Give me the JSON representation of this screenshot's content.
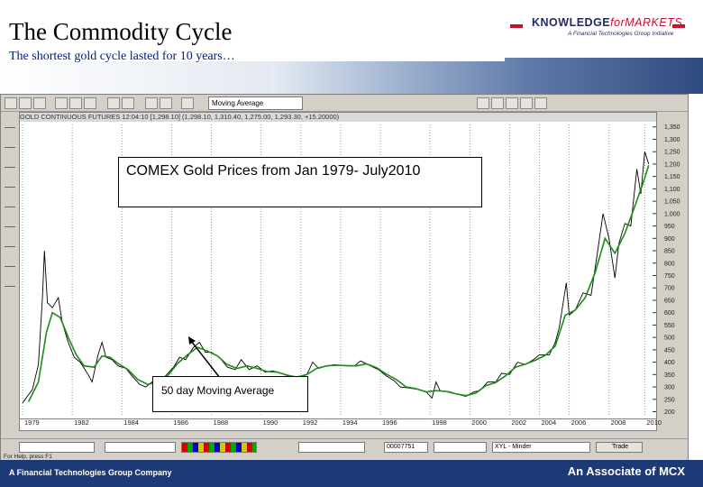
{
  "slide": {
    "title": "The Commodity Cycle",
    "subtitle": "The shortest gold cycle lasted for 10 years…",
    "logo_main": "KNOWLEDGE",
    "logo_italic": "forMARKETS",
    "logo_sub": "A Financial Technologies Group Initiative",
    "footer_left": "A Financial Technologies Group Company",
    "footer_right": "An Associate of MCX"
  },
  "app": {
    "indicator_select": "Moving Average",
    "chart_header": "GOLD CONTINUOUS FUTURES 12:04:10 [1,298.10] (1,298.10, 1,310.40, 1,275.00, 1,293.30, +15.20000)",
    "bottom_fields": [
      "",
      "",
      "",
      "",
      "00007751",
      "",
      "XYL - Minder",
      "Trade"
    ],
    "status": "For Help, press F1"
  },
  "chart_data": {
    "type": "line",
    "annotation_title": "COMEX Gold Prices from Jan 1979- July2010",
    "annotation_ma": "50 day Moving Average",
    "x_tick_labels": [
      "1979",
      "1982",
      "1984",
      "1986",
      "1988",
      "1990",
      "1992",
      "1994",
      "1996",
      "1998",
      "2000",
      "2002",
      "2004",
      "2006",
      "2008",
      "2010"
    ],
    "x_tick_years": [
      1979,
      1981.5,
      1984,
      1986.5,
      1988.5,
      1991,
      1993,
      1995,
      1997,
      1999.5,
      2001.5,
      2003.5,
      2005,
      2006.5,
      2008.5,
      2010.3
    ],
    "y_ticks": [
      200,
      250,
      300,
      350,
      400,
      450,
      500,
      550,
      600,
      650,
      700,
      750,
      800,
      850,
      900,
      950,
      1000,
      1050,
      1100,
      1150,
      1200,
      1250,
      1300,
      1350
    ],
    "ylim": [
      180,
      1360
    ],
    "xlim": [
      1979,
      2010.6
    ],
    "series": [
      {
        "values_kind": "price",
        "color": "#000000",
        "points": [
          [
            1979.0,
            235
          ],
          [
            1979.5,
            290
          ],
          [
            1979.8,
            390
          ],
          [
            1980.0,
            660
          ],
          [
            1980.1,
            850
          ],
          [
            1980.25,
            640
          ],
          [
            1980.5,
            620
          ],
          [
            1980.8,
            660
          ],
          [
            1981.0,
            560
          ],
          [
            1981.3,
            480
          ],
          [
            1981.6,
            420
          ],
          [
            1981.9,
            400
          ],
          [
            1982.3,
            350
          ],
          [
            1982.5,
            320
          ],
          [
            1982.8,
            430
          ],
          [
            1983.0,
            480
          ],
          [
            1983.2,
            420
          ],
          [
            1983.5,
            410
          ],
          [
            1983.8,
            385
          ],
          [
            1984.2,
            375
          ],
          [
            1984.5,
            345
          ],
          [
            1984.9,
            310
          ],
          [
            1985.2,
            300
          ],
          [
            1985.5,
            320
          ],
          [
            1985.9,
            330
          ],
          [
            1986.2,
            345
          ],
          [
            1986.6,
            380
          ],
          [
            1986.9,
            420
          ],
          [
            1987.2,
            410
          ],
          [
            1987.6,
            460
          ],
          [
            1987.9,
            480
          ],
          [
            1988.2,
            440
          ],
          [
            1988.5,
            440
          ],
          [
            1988.9,
            420
          ],
          [
            1989.3,
            380
          ],
          [
            1989.7,
            370
          ],
          [
            1990.0,
            410
          ],
          [
            1990.4,
            370
          ],
          [
            1990.8,
            385
          ],
          [
            1991.2,
            360
          ],
          [
            1991.6,
            365
          ],
          [
            1992.0,
            355
          ],
          [
            1992.5,
            340
          ],
          [
            1992.9,
            335
          ],
          [
            1993.3,
            350
          ],
          [
            1993.6,
            400
          ],
          [
            1993.9,
            375
          ],
          [
            1994.3,
            385
          ],
          [
            1994.7,
            390
          ],
          [
            1995.2,
            385
          ],
          [
            1995.7,
            385
          ],
          [
            1996.0,
            405
          ],
          [
            1996.5,
            385
          ],
          [
            1996.9,
            370
          ],
          [
            1997.3,
            345
          ],
          [
            1997.7,
            325
          ],
          [
            1998.0,
            300
          ],
          [
            1998.5,
            295
          ],
          [
            1998.9,
            290
          ],
          [
            1999.3,
            280
          ],
          [
            1999.6,
            255
          ],
          [
            1999.8,
            320
          ],
          [
            2000.0,
            285
          ],
          [
            2000.5,
            280
          ],
          [
            2000.9,
            270
          ],
          [
            2001.3,
            262
          ],
          [
            2001.7,
            280
          ],
          [
            2002.0,
            285
          ],
          [
            2002.4,
            320
          ],
          [
            2002.8,
            320
          ],
          [
            2003.1,
            355
          ],
          [
            2003.5,
            350
          ],
          [
            2003.9,
            400
          ],
          [
            2004.3,
            390
          ],
          [
            2004.7,
            410
          ],
          [
            2005.0,
            430
          ],
          [
            2005.5,
            430
          ],
          [
            2005.8,
            480
          ],
          [
            2006.0,
            540
          ],
          [
            2006.35,
            720
          ],
          [
            2006.5,
            590
          ],
          [
            2006.8,
            610
          ],
          [
            2007.2,
            680
          ],
          [
            2007.6,
            670
          ],
          [
            2007.9,
            830
          ],
          [
            2008.2,
            1000
          ],
          [
            2008.5,
            900
          ],
          [
            2008.8,
            740
          ],
          [
            2009.0,
            880
          ],
          [
            2009.3,
            960
          ],
          [
            2009.6,
            950
          ],
          [
            2009.9,
            1180
          ],
          [
            2010.1,
            1080
          ],
          [
            2010.3,
            1250
          ],
          [
            2010.5,
            1200
          ]
        ]
      },
      {
        "values_kind": "moving_average",
        "name": "50 day Moving Average",
        "color": "#1a8c1a",
        "points": [
          [
            1979.3,
            240
          ],
          [
            1979.8,
            320
          ],
          [
            1980.2,
            520
          ],
          [
            1980.5,
            600
          ],
          [
            1980.9,
            580
          ],
          [
            1981.3,
            500
          ],
          [
            1981.7,
            430
          ],
          [
            1982.1,
            385
          ],
          [
            1982.6,
            380
          ],
          [
            1983.0,
            425
          ],
          [
            1983.4,
            420
          ],
          [
            1983.8,
            395
          ],
          [
            1984.3,
            370
          ],
          [
            1984.8,
            330
          ],
          [
            1985.3,
            310
          ],
          [
            1985.8,
            320
          ],
          [
            1986.3,
            345
          ],
          [
            1986.8,
            395
          ],
          [
            1987.3,
            430
          ],
          [
            1987.8,
            460
          ],
          [
            1988.3,
            445
          ],
          [
            1988.8,
            425
          ],
          [
            1989.3,
            390
          ],
          [
            1989.8,
            375
          ],
          [
            1990.3,
            385
          ],
          [
            1990.8,
            375
          ],
          [
            1991.3,
            362
          ],
          [
            1991.8,
            360
          ],
          [
            1992.3,
            348
          ],
          [
            1992.8,
            340
          ],
          [
            1993.3,
            350
          ],
          [
            1993.8,
            375
          ],
          [
            1994.3,
            385
          ],
          [
            1994.8,
            388
          ],
          [
            1995.3,
            386
          ],
          [
            1995.8,
            385
          ],
          [
            1996.3,
            393
          ],
          [
            1996.8,
            378
          ],
          [
            1997.3,
            352
          ],
          [
            1997.8,
            330
          ],
          [
            1998.3,
            300
          ],
          [
            1998.8,
            293
          ],
          [
            1999.3,
            280
          ],
          [
            1999.8,
            285
          ],
          [
            2000.3,
            282
          ],
          [
            2000.8,
            272
          ],
          [
            2001.3,
            265
          ],
          [
            2001.8,
            275
          ],
          [
            2002.3,
            305
          ],
          [
            2002.8,
            318
          ],
          [
            2003.3,
            345
          ],
          [
            2003.8,
            380
          ],
          [
            2004.3,
            392
          ],
          [
            2004.8,
            408
          ],
          [
            2005.3,
            428
          ],
          [
            2005.8,
            465
          ],
          [
            2006.3,
            590
          ],
          [
            2006.8,
            610
          ],
          [
            2007.3,
            660
          ],
          [
            2007.8,
            760
          ],
          [
            2008.3,
            900
          ],
          [
            2008.8,
            840
          ],
          [
            2009.3,
            920
          ],
          [
            2009.8,
            1030
          ],
          [
            2010.2,
            1120
          ],
          [
            2010.5,
            1195
          ]
        ]
      }
    ]
  }
}
